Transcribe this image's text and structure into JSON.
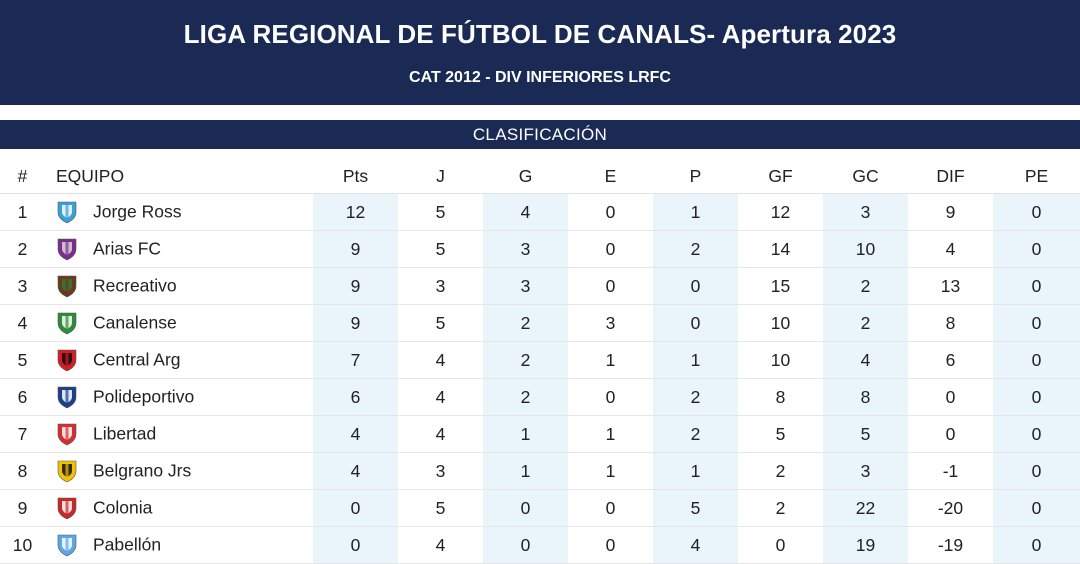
{
  "header": {
    "title": "LIGA REGIONAL DE FÚTBOL DE CANALS- Apertura 2023",
    "subtitle": "CAT 2012 - DIV INFERIORES LRFC"
  },
  "section_title": "CLASIFICACIÓN",
  "columns": {
    "pos": "#",
    "team": "EQUIPO",
    "pts": "Pts",
    "j": "J",
    "g": "G",
    "e": "E",
    "p": "P",
    "gf": "GF",
    "gc": "GC",
    "dif": "DIF",
    "pe": "PE"
  },
  "rows": [
    {
      "pos": "1",
      "team": "Jorge Ross",
      "crest": "jorge-ross-crest",
      "colors": [
        "#3aa0d8",
        "#ffffff"
      ],
      "pts": "12",
      "j": "5",
      "g": "4",
      "e": "0",
      "p": "1",
      "gf": "12",
      "gc": "3",
      "dif": "9",
      "pe": "0"
    },
    {
      "pos": "2",
      "team": "Arias FC",
      "crest": "arias-fc-crest",
      "colors": [
        "#7b2d8e",
        "#d8d8d8"
      ],
      "pts": "9",
      "j": "5",
      "g": "3",
      "e": "0",
      "p": "2",
      "gf": "14",
      "gc": "10",
      "dif": "4",
      "pe": "0"
    },
    {
      "pos": "3",
      "team": "Recreativo",
      "crest": "recreativo-crest",
      "colors": [
        "#6b3a1e",
        "#2e7d32"
      ],
      "pts": "9",
      "j": "3",
      "g": "3",
      "e": "0",
      "p": "0",
      "gf": "15",
      "gc": "2",
      "dif": "13",
      "pe": "0"
    },
    {
      "pos": "4",
      "team": "Canalense",
      "crest": "canalense-crest",
      "colors": [
        "#2e8b3a",
        "#ffffff"
      ],
      "pts": "9",
      "j": "5",
      "g": "2",
      "e": "3",
      "p": "0",
      "gf": "10",
      "gc": "2",
      "dif": "8",
      "pe": "0"
    },
    {
      "pos": "5",
      "team": "Central Arg",
      "crest": "central-arg-crest",
      "colors": [
        "#d21f26",
        "#111111"
      ],
      "pts": "7",
      "j": "4",
      "g": "2",
      "e": "1",
      "p": "1",
      "gf": "10",
      "gc": "4",
      "dif": "6",
      "pe": "0"
    },
    {
      "pos": "6",
      "team": "Polideportivo",
      "crest": "polideportivo-crest",
      "colors": [
        "#1b3f8b",
        "#ffffff"
      ],
      "pts": "6",
      "j": "4",
      "g": "2",
      "e": "0",
      "p": "2",
      "gf": "8",
      "gc": "8",
      "dif": "0",
      "pe": "0"
    },
    {
      "pos": "7",
      "team": "Libertad",
      "crest": "libertad-crest",
      "colors": [
        "#d32f2f",
        "#ffffff"
      ],
      "pts": "4",
      "j": "4",
      "g": "1",
      "e": "1",
      "p": "2",
      "gf": "5",
      "gc": "5",
      "dif": "0",
      "pe": "0"
    },
    {
      "pos": "8",
      "team": "Belgrano Jrs",
      "crest": "belgrano-jrs-crest",
      "colors": [
        "#f2c200",
        "#111111"
      ],
      "pts": "4",
      "j": "3",
      "g": "1",
      "e": "1",
      "p": "1",
      "gf": "2",
      "gc": "3",
      "dif": "-1",
      "pe": "0"
    },
    {
      "pos": "9",
      "team": "Colonia",
      "crest": "colonia-crest",
      "colors": [
        "#c62828",
        "#ffffff"
      ],
      "pts": "0",
      "j": "5",
      "g": "0",
      "e": "0",
      "p": "5",
      "gf": "2",
      "gc": "22",
      "dif": "-20",
      "pe": "0"
    },
    {
      "pos": "10",
      "team": "Pabellón",
      "crest": "pabellon-crest",
      "colors": [
        "#5aa9e6",
        "#ffffff"
      ],
      "pts": "0",
      "j": "4",
      "g": "0",
      "e": "0",
      "p": "4",
      "gf": "0",
      "gc": "19",
      "dif": "-19",
      "pe": "0"
    }
  ]
}
